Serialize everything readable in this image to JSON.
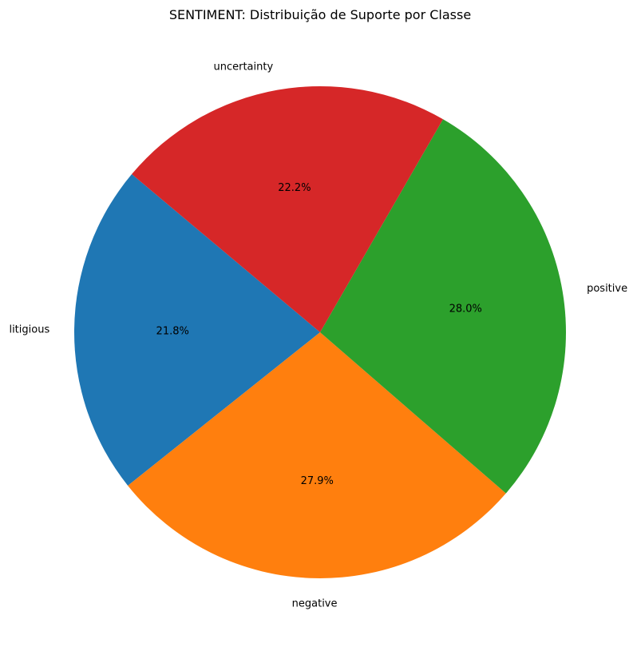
{
  "chart_data": {
    "type": "pie",
    "title": "SENTIMENT: Distribuição de Suporte por Classe",
    "start_angle_deg": 140,
    "direction": "counterclockwise",
    "slices": [
      {
        "label": "litigious",
        "value": 21.8,
        "pct_label": "21.8%",
        "color": "#1f77b4"
      },
      {
        "label": "negative",
        "value": 27.9,
        "pct_label": "27.9%",
        "color": "#ff7f0e"
      },
      {
        "label": "positive",
        "value": 28.0,
        "pct_label": "28.0%",
        "color": "#2ca02c"
      },
      {
        "label": "uncertainty",
        "value": 22.2,
        "pct_label": "22.2%",
        "color": "#d62728"
      }
    ]
  }
}
